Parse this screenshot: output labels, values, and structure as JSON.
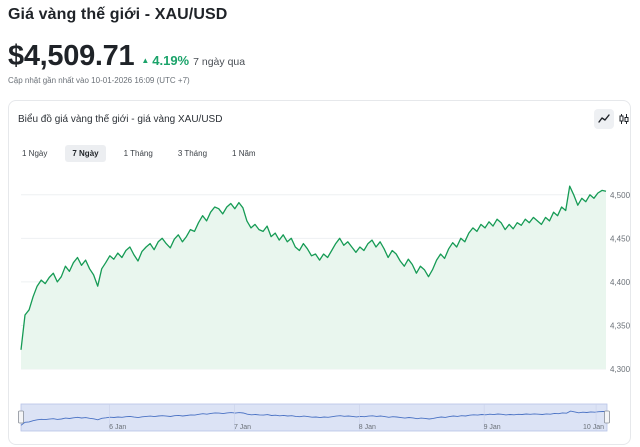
{
  "header": {
    "title": "Giá vàng thế giới - XAU/USD"
  },
  "price": {
    "value": "$4,509.71",
    "change_pct": "4.19%",
    "change_period": "7 ngày qua",
    "updated": "Cập nhật gần nhất vào 10-01-2026 16:09 (UTC +7)"
  },
  "chart_card": {
    "title": "Biểu đồ giá vàng thế giới - giá vàng XAU/USD",
    "tools": [
      {
        "name": "line-chart-icon",
        "active": true
      },
      {
        "name": "candlestick-icon",
        "active": false
      }
    ],
    "ranges": [
      {
        "label": "1 Ngày",
        "active": false
      },
      {
        "label": "7 Ngày",
        "active": true
      },
      {
        "label": "1 Tháng",
        "active": false
      },
      {
        "label": "3 Tháng",
        "active": false
      },
      {
        "label": "1 Năm",
        "active": false
      }
    ]
  },
  "colors": {
    "accent": "#1ba36a",
    "line": "#169b55",
    "area": "#e9f6ee",
    "navigator_bg": "#dce3f5",
    "navigator_line": "#4a72c4"
  },
  "chart_data": {
    "type": "area",
    "ylim": [
      4300,
      4525
    ],
    "y_ticks": [
      "4,500",
      "4,450",
      "4,400",
      "4,350",
      "4,300"
    ],
    "y_tick_values": [
      4500,
      4450,
      4400,
      4350,
      4300
    ],
    "x_labels": [
      "6 Jan",
      "7 Jan",
      "8 Jan",
      "9 Jan",
      "10 Jan"
    ],
    "x_label_positions": [
      0.165,
      0.378,
      0.591,
      0.804,
      0.995
    ],
    "grid": true,
    "series": [
      {
        "values": [
          4322,
          4362,
          4368,
          4383,
          4395,
          4402,
          4398,
          4405,
          4410,
          4400,
          4406,
          4418,
          4412,
          4422,
          4428,
          4419,
          4425,
          4415,
          4408,
          4395,
          4415,
          4422,
          4430,
          4426,
          4433,
          4428,
          4436,
          4440,
          4431,
          4424,
          4435,
          4440,
          4444,
          4437,
          4446,
          4450,
          4444,
          4439,
          4449,
          4454,
          4446,
          4452,
          4460,
          4458,
          4468,
          4476,
          4470,
          4480,
          4486,
          4484,
          4478,
          4486,
          4490,
          4484,
          4491,
          4485,
          4470,
          4462,
          4466,
          4460,
          4458,
          4464,
          4452,
          4456,
          4448,
          4454,
          4446,
          4450,
          4440,
          4436,
          4444,
          4438,
          4430,
          4432,
          4425,
          4432,
          4428,
          4436,
          4444,
          4450,
          4442,
          4446,
          4440,
          4434,
          4440,
          4436,
          4444,
          4448,
          4440,
          4446,
          4438,
          4428,
          4436,
          4432,
          4424,
          4418,
          4426,
          4420,
          4410,
          4418,
          4414,
          4406,
          4414,
          4425,
          4432,
          4427,
          4438,
          4445,
          4440,
          4450,
          4446,
          4456,
          4462,
          4458,
          4466,
          4462,
          4469,
          4464,
          4472,
          4468,
          4460,
          4466,
          4461,
          4468,
          4465,
          4472,
          4468,
          4474,
          4470,
          4466,
          4474,
          4470,
          4480,
          4476,
          4486,
          4482,
          4510,
          4500,
          4488,
          4496,
          4492,
          4500,
          4496,
          4502,
          4505,
          4504
        ]
      }
    ]
  }
}
